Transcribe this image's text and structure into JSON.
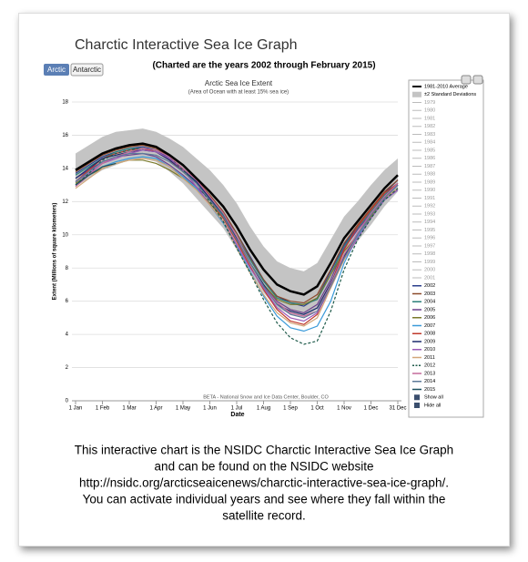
{
  "header": {
    "title": "Charctic Interactive Sea Ice Graph",
    "tabs": [
      "Arctic",
      "Antarctic"
    ],
    "subtitle": "(Charted are the years 2002 through February 2015)"
  },
  "chart_data": {
    "type": "line",
    "title": "Arctic Sea Ice Extent",
    "subtitle": "(Area of Ocean with at least 15% sea ice)",
    "x_label": "Date",
    "y_label": "Extent (Millions of square kilometers)",
    "credit": "BETA - National Snow and Ice Data Center, Boulder, CO",
    "categories": [
      "1 Jan",
      null,
      "1 Feb",
      null,
      "1 Mar",
      null,
      "1 Apr",
      null,
      "1 May",
      null,
      "1 Jun",
      null,
      "1 Jul",
      null,
      "1 Aug",
      null,
      "1 Sep",
      null,
      "1 Oct",
      null,
      "1 Nov",
      null,
      "1 Dec",
      null,
      "31 Dec"
    ],
    "ylim": [
      0,
      18
    ],
    "yticks": [
      0,
      2,
      4,
      6,
      8,
      10,
      12,
      14,
      16,
      18
    ],
    "grid": true,
    "band": {
      "name": "±2 Standard Deviations",
      "color": "#c4c4c4",
      "high": [
        14.9,
        15.4,
        15.9,
        16.2,
        16.3,
        16.4,
        16.2,
        15.8,
        15.3,
        14.6,
        13.9,
        13.0,
        11.9,
        10.5,
        9.3,
        8.4,
        8.0,
        7.8,
        8.3,
        9.7,
        11.1,
        12.0,
        13.0,
        13.9,
        14.6
      ],
      "low": [
        12.9,
        13.4,
        13.9,
        14.2,
        14.5,
        14.6,
        14.4,
        13.8,
        13.1,
        12.2,
        11.3,
        10.4,
        9.1,
        7.7,
        6.5,
        5.6,
        5.2,
        5.0,
        5.5,
        6.9,
        8.5,
        9.6,
        10.6,
        11.7,
        12.6
      ]
    },
    "series": [
      {
        "name": "1981-2010 Average",
        "color": "#000000",
        "width": 2.5,
        "values": [
          13.9,
          14.4,
          14.9,
          15.2,
          15.4,
          15.5,
          15.3,
          14.8,
          14.2,
          13.4,
          12.6,
          11.7,
          10.5,
          9.1,
          7.9,
          7.0,
          6.6,
          6.4,
          6.9,
          8.3,
          9.8,
          10.8,
          11.8,
          12.8,
          13.6
        ]
      },
      {
        "name": "2002",
        "color": "#2b3f8c",
        "values": [
          13.7,
          14.2,
          14.7,
          15.0,
          15.2,
          15.3,
          15.1,
          14.6,
          13.9,
          13.2,
          12.3,
          11.3,
          10.1,
          8.7,
          7.3,
          6.3,
          5.9,
          5.7,
          6.2,
          7.8,
          9.4,
          10.5,
          11.6,
          12.5,
          13.3
        ]
      },
      {
        "name": "2003",
        "color": "#8c4a2b",
        "values": [
          13.8,
          14.3,
          14.8,
          15.1,
          15.3,
          15.4,
          15.2,
          14.7,
          14.0,
          13.3,
          12.4,
          11.4,
          10.1,
          8.6,
          7.3,
          6.3,
          6.0,
          5.9,
          6.4,
          7.9,
          9.5,
          10.6,
          11.6,
          12.6,
          13.3
        ]
      },
      {
        "name": "2004",
        "color": "#2b7f7a",
        "values": [
          13.6,
          14.1,
          14.6,
          15.0,
          15.2,
          15.2,
          15.0,
          14.5,
          13.8,
          13.1,
          12.2,
          11.2,
          9.9,
          8.5,
          7.2,
          6.2,
          5.9,
          5.8,
          6.1,
          7.6,
          9.3,
          10.4,
          11.4,
          12.4,
          13.1
        ]
      },
      {
        "name": "2005",
        "color": "#6b3f8c",
        "values": [
          13.4,
          13.9,
          14.4,
          14.7,
          14.8,
          14.9,
          14.7,
          14.2,
          13.6,
          12.9,
          12.1,
          11.1,
          9.8,
          8.3,
          7.0,
          6.0,
          5.5,
          5.3,
          5.8,
          7.3,
          9.2,
          10.3,
          11.3,
          12.3,
          13.0
        ]
      },
      {
        "name": "2006",
        "color": "#7a7a2b",
        "values": [
          13.1,
          13.6,
          14.0,
          14.3,
          14.5,
          14.5,
          14.3,
          13.9,
          13.4,
          12.8,
          11.9,
          11.0,
          9.7,
          8.3,
          7.0,
          6.1,
          5.8,
          5.8,
          6.2,
          7.6,
          9.0,
          10.0,
          11.1,
          12.2,
          12.8
        ]
      },
      {
        "name": "2007",
        "color": "#3a9ad9",
        "values": [
          13.0,
          13.6,
          14.1,
          14.4,
          14.6,
          14.7,
          14.6,
          14.1,
          13.5,
          12.8,
          11.8,
          10.7,
          9.3,
          7.8,
          6.3,
          5.1,
          4.4,
          4.2,
          4.5,
          6.0,
          8.3,
          9.9,
          11.0,
          12.1,
          12.7
        ]
      },
      {
        "name": "2008",
        "color": "#c0392b",
        "values": [
          13.2,
          13.9,
          14.6,
          14.9,
          15.1,
          15.2,
          15.0,
          14.5,
          13.8,
          13.1,
          12.1,
          11.0,
          9.6,
          8.1,
          6.7,
          5.5,
          4.8,
          4.6,
          5.2,
          7.0,
          9.1,
          10.5,
          11.5,
          12.5,
          13.1
        ]
      },
      {
        "name": "2009",
        "color": "#1a2a6c",
        "values": [
          13.4,
          14.0,
          14.6,
          14.8,
          15.0,
          15.1,
          15.0,
          14.5,
          13.9,
          13.2,
          12.2,
          11.1,
          9.8,
          8.3,
          7.0,
          5.8,
          5.4,
          5.2,
          5.6,
          7.1,
          8.7,
          10.1,
          11.2,
          12.2,
          13.0
        ]
      },
      {
        "name": "2010",
        "color": "#9b59b6",
        "values": [
          13.2,
          13.7,
          14.3,
          14.6,
          14.9,
          15.1,
          15.0,
          14.6,
          13.9,
          12.9,
          11.8,
          10.8,
          9.4,
          8.0,
          6.8,
          5.6,
          5.0,
          4.8,
          5.3,
          6.8,
          8.5,
          9.8,
          11.0,
          12.1,
          12.7
        ]
      },
      {
        "name": "2011",
        "color": "#d2a679",
        "values": [
          12.8,
          13.4,
          14.0,
          14.3,
          14.5,
          14.6,
          14.5,
          14.1,
          13.4,
          12.7,
          11.8,
          10.8,
          9.2,
          7.7,
          6.4,
          5.3,
          4.7,
          4.5,
          5.0,
          6.8,
          8.5,
          10.0,
          11.2,
          12.2,
          12.8
        ]
      },
      {
        "name": "2012",
        "color": "#1e5a4a",
        "dash": true,
        "values": [
          13.0,
          13.7,
          14.5,
          14.9,
          15.1,
          15.2,
          15.1,
          14.7,
          13.9,
          13.1,
          12.0,
          10.8,
          9.2,
          7.7,
          6.1,
          4.7,
          3.8,
          3.4,
          3.6,
          5.4,
          7.9,
          9.7,
          11.0,
          12.1,
          12.8
        ]
      },
      {
        "name": "2013",
        "color": "#c46a9a",
        "values": [
          12.9,
          13.6,
          14.3,
          14.7,
          15.0,
          15.2,
          15.1,
          14.7,
          14.0,
          13.3,
          12.3,
          11.3,
          9.9,
          8.3,
          6.9,
          5.9,
          5.3,
          5.1,
          5.4,
          7.0,
          8.8,
          10.1,
          11.3,
          12.3,
          13.1
        ]
      },
      {
        "name": "2014",
        "color": "#5d7a99",
        "values": [
          13.2,
          13.8,
          14.4,
          14.7,
          14.9,
          14.9,
          14.8,
          14.4,
          13.8,
          13.1,
          12.1,
          11.1,
          9.7,
          8.3,
          6.9,
          5.8,
          5.2,
          5.0,
          5.4,
          6.9,
          8.6,
          10.0,
          11.2,
          12.2,
          13.0
        ]
      },
      {
        "name": "2015",
        "color": "#1c4f5e",
        "values": [
          13.0,
          13.6,
          14.1,
          14.3,
          null,
          null,
          null,
          null,
          null,
          null,
          null,
          null,
          null,
          null,
          null,
          null,
          null,
          null,
          null,
          null,
          null,
          null,
          null,
          null,
          null
        ]
      }
    ],
    "inactive_series": [
      "1979",
      "1980",
      "1981",
      "1982",
      "1983",
      "1984",
      "1985",
      "1986",
      "1987",
      "1988",
      "1989",
      "1990",
      "1991",
      "1992",
      "1993",
      "1994",
      "1995",
      "1996",
      "1997",
      "1998",
      "1999",
      "2000",
      "2001"
    ],
    "legend_buttons": [
      "Show all",
      "Hide all"
    ]
  },
  "caption": [
    "This interactive chart is the NSIDC Charctic Interactive Sea Ice Graph",
    "and can be found on the NSIDC website",
    "http://nsidc.org/arcticseaicenews/charctic-interactive-sea-ice-graph/.",
    "You can activate individual years and see where they fall within the",
    "satellite record."
  ]
}
